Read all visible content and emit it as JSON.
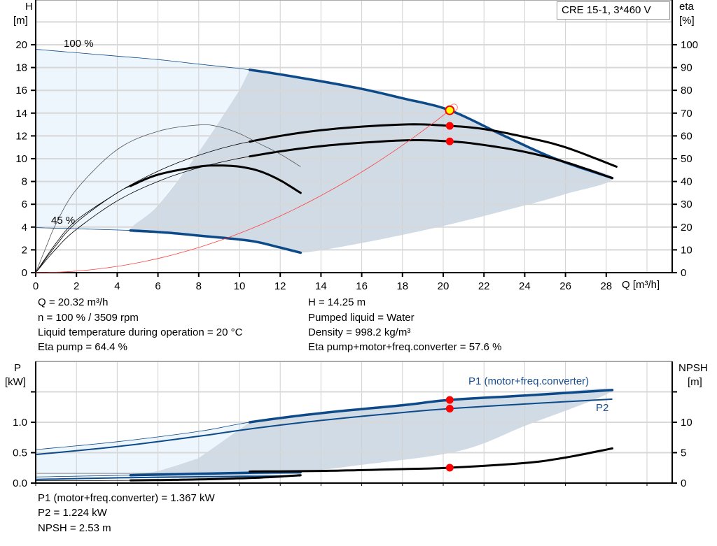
{
  "legend_title": "CRE 15-1, 3*460 V",
  "colors": {
    "band_light": "#edf5fd",
    "band_dark": "#d0dbe6",
    "curve_blue": "#0d4a8a",
    "curve_black": "#000000",
    "system_curve": "#ff4040",
    "dot": "#ff0000",
    "duty_point": "#ffff00"
  },
  "chart_data": [
    {
      "type": "line",
      "xlabel": "Q [m³/h]",
      "ylabel_left": [
        "H",
        "[m]"
      ],
      "ylabel_right": [
        "eta",
        "[%]"
      ],
      "xlim": [
        0,
        32.2
      ],
      "ylim_left": [
        0,
        23.9
      ],
      "ylim_right": [
        0,
        119.5
      ],
      "x_ticks": [
        "0",
        "2",
        "4",
        "6",
        "8",
        "10",
        "12",
        "14",
        "16",
        "18",
        "20",
        "22",
        "24",
        "26",
        "28"
      ],
      "y_ticks_left": [
        "0",
        "2",
        "4",
        "6",
        "8",
        "10",
        "12",
        "14",
        "16",
        "18",
        "20"
      ],
      "y_ticks_right": [
        "0",
        "10",
        "20",
        "30",
        "40",
        "50",
        "60",
        "70",
        "80",
        "90",
        "100"
      ],
      "grid": true,
      "annotations": [
        "100 %",
        "45 %"
      ],
      "series": [
        {
          "axis": "H",
          "style": "blue",
          "thick_from": 10.5,
          "points": [
            [
              0,
              19.6
            ],
            [
              2,
              19.3
            ],
            [
              4,
              19.0
            ],
            [
              6,
              18.7
            ],
            [
              8,
              18.3
            ],
            [
              10.5,
              17.8
            ],
            [
              13,
              17.1
            ],
            [
              15.8,
              16.2
            ],
            [
              18,
              15.3
            ],
            [
              20.32,
              14.25
            ],
            [
              23,
              12.0
            ],
            [
              25.5,
              10.0
            ],
            [
              28.3,
              8.3
            ]
          ]
        },
        {
          "axis": "H",
          "style": "blue",
          "thick_from": 4.65,
          "points": [
            [
              0,
              3.95
            ],
            [
              2,
              3.85
            ],
            [
              4.65,
              3.7
            ],
            [
              6.5,
              3.5
            ],
            [
              8,
              3.25
            ],
            [
              10.5,
              2.8
            ],
            [
              12,
              2.2
            ],
            [
              13,
              1.75
            ]
          ]
        },
        {
          "axis": "eta",
          "style": "black",
          "thick_from": 10.5,
          "points": [
            [
              0,
              0
            ],
            [
              1,
              12
            ],
            [
              2,
              22
            ],
            [
              4,
              35
            ],
            [
              6,
              44.5
            ],
            [
              8,
              51.5
            ],
            [
              10.5,
              57.5
            ],
            [
              14,
              62.5
            ],
            [
              18,
              65
            ],
            [
              20.32,
              64.4
            ],
            [
              22,
              63
            ],
            [
              24,
              59.5
            ],
            [
              26,
              55
            ],
            [
              28.5,
              46.5
            ]
          ]
        },
        {
          "axis": "eta",
          "style": "black",
          "thick_from": 10.5,
          "points": [
            [
              0,
              0
            ],
            [
              1,
              10.5
            ],
            [
              2,
              19
            ],
            [
              4,
              31.5
            ],
            [
              6,
              40
            ],
            [
              8,
              46
            ],
            [
              10.5,
              51
            ],
            [
              14,
              55.5
            ],
            [
              18,
              58
            ],
            [
              20.32,
              57.6
            ],
            [
              22,
              56
            ],
            [
              24,
              53
            ],
            [
              26,
              48.5
            ],
            [
              28.3,
              41.5
            ]
          ]
        },
        {
          "axis": "eta",
          "style": "black",
          "thick_from": 4.65,
          "points": [
            [
              0,
              0
            ],
            [
              1,
              13
            ],
            [
              2,
              23
            ],
            [
              4,
              35
            ],
            [
              4.65,
              38
            ],
            [
              6,
              43
            ],
            [
              8,
              46.5
            ],
            [
              9,
              47
            ],
            [
              10,
              46.5
            ],
            [
              11,
              44.5
            ],
            [
              12,
              40.5
            ],
            [
              13,
              35
            ]
          ]
        },
        {
          "axis": "eta",
          "style": "thin",
          "thick_from": 99,
          "points": [
            [
              0,
              0
            ],
            [
              0.5,
              11
            ],
            [
              1,
              21.5
            ],
            [
              2,
              36.5
            ],
            [
              4,
              54
            ],
            [
              6,
              62
            ],
            [
              8,
              64.8
            ],
            [
              9,
              64
            ],
            [
              10,
              61
            ],
            [
              11,
              56.5
            ],
            [
              12,
              52
            ],
            [
              13,
              46.5
            ]
          ]
        }
      ],
      "system_curve": {
        "k": 0.0345,
        "q_max": 20.7
      },
      "duty_point": {
        "Q": 20.32,
        "H": 14.25
      },
      "eta_points": [
        64.4,
        57.6
      ],
      "operating_range_dark": [
        [
          10.5,
          17.8
        ],
        [
          13,
          17.1
        ],
        [
          15.8,
          16.2
        ],
        [
          18,
          15.3
        ],
        [
          20.32,
          14.25
        ],
        [
          23,
          12.0
        ],
        [
          25.5,
          10.0
        ],
        [
          28.3,
          8.3
        ],
        [
          26,
          6.9
        ],
        [
          24,
          5.9
        ],
        [
          20,
          4.1
        ],
        [
          16,
          2.6
        ],
        [
          13,
          1.75
        ],
        [
          12,
          2.2
        ],
        [
          10.5,
          2.8
        ],
        [
          8,
          3.25
        ],
        [
          6.5,
          3.5
        ],
        [
          4.65,
          3.7
        ],
        [
          6,
          5.9
        ],
        [
          8,
          10.6
        ],
        [
          10,
          16
        ]
      ],
      "operating_range_light": [
        [
          0,
          19.6
        ],
        [
          2,
          19.3
        ],
        [
          4,
          19.0
        ],
        [
          6,
          18.7
        ],
        [
          8,
          18.3
        ],
        [
          10.5,
          17.8
        ],
        [
          10,
          16
        ],
        [
          8,
          10.6
        ],
        [
          6,
          5.9
        ],
        [
          4.65,
          3.7
        ],
        [
          2,
          3.85
        ],
        [
          0,
          3.95
        ]
      ]
    },
    {
      "type": "line",
      "ylabel_left": [
        "P",
        "[kW]"
      ],
      "ylabel_right": [
        "NPSH",
        "[m]"
      ],
      "xlim": [
        0,
        32.2
      ],
      "ylim_left": [
        0,
        2.0
      ],
      "ylim_right": [
        0,
        20
      ],
      "y_ticks_left": [
        "0.0",
        "0.5",
        "1.0"
      ],
      "y_ticks_right": [
        "0",
        "5",
        "10"
      ],
      "grid": true,
      "series": [
        {
          "name": "P1 (motor+freq.converter)",
          "axis": "P",
          "style": "blue",
          "thick_from": 10.5,
          "points": [
            [
              0,
              0.55
            ],
            [
              4,
              0.68
            ],
            [
              8,
              0.85
            ],
            [
              10.5,
              1.0
            ],
            [
              14,
              1.15
            ],
            [
              18,
              1.28
            ],
            [
              20.32,
              1.367
            ],
            [
              24,
              1.44
            ],
            [
              28.3,
              1.53
            ]
          ]
        },
        {
          "name": "P2",
          "axis": "P",
          "style": "bluemid",
          "thick_from": 99,
          "points": [
            [
              0,
              0.47
            ],
            [
              4,
              0.6
            ],
            [
              8,
              0.77
            ],
            [
              10.5,
              0.89
            ],
            [
              14,
              1.03
            ],
            [
              18,
              1.16
            ],
            [
              20.32,
              1.224
            ],
            [
              24,
              1.3
            ],
            [
              28.3,
              1.38
            ]
          ]
        },
        {
          "axis": "P",
          "style": "blue",
          "thick_from": 4.65,
          "points": [
            [
              0,
              0.1
            ],
            [
              4.65,
              0.13
            ],
            [
              10.5,
              0.17
            ],
            [
              13,
              0.18
            ]
          ]
        },
        {
          "axis": "P",
          "style": "bluemid",
          "thick_from": 99,
          "points": [
            [
              0,
              0.06
            ],
            [
              4.65,
              0.09
            ],
            [
              10,
              0.11
            ],
            [
              13,
              0.12
            ]
          ]
        },
        {
          "axis": "NPSH",
          "style": "black",
          "thick_from": 4.65,
          "points": [
            [
              0,
              0.4
            ],
            [
              4.65,
              0.45
            ],
            [
              8,
              0.6
            ],
            [
              11,
              0.9
            ],
            [
              13,
              1.3
            ]
          ]
        },
        {
          "axis": "NPSH",
          "style": "black",
          "thick_from": 10.5,
          "points": [
            [
              10.5,
              1.9
            ],
            [
              14,
              2.0
            ],
            [
              18,
              2.3
            ],
            [
              20.32,
              2.53
            ],
            [
              24,
              3.3
            ],
            [
              26,
              4.2
            ],
            [
              28.3,
              5.7
            ]
          ]
        }
      ],
      "points": [
        [
          "P",
          1.367
        ],
        [
          "P",
          1.224
        ],
        [
          "NPSH",
          2.53
        ]
      ],
      "operating_range_dark": [
        [
          10.5,
          1.0
        ],
        [
          14,
          1.15
        ],
        [
          18,
          1.28
        ],
        [
          20.32,
          1.367
        ],
        [
          24,
          1.44
        ],
        [
          28.3,
          1.53
        ],
        [
          24,
          0.94
        ],
        [
          20.8,
          0.53
        ],
        [
          16,
          0.3
        ],
        [
          12,
          0.15
        ],
        [
          8,
          0.1
        ],
        [
          4.65,
          0.13
        ],
        [
          6,
          0.2
        ],
        [
          8,
          0.41
        ]
      ],
      "operating_range_light": [
        [
          0,
          0.55
        ],
        [
          4,
          0.68
        ],
        [
          8,
          0.85
        ],
        [
          10.5,
          1.0
        ],
        [
          8,
          0.41
        ],
        [
          6,
          0.2
        ],
        [
          4.65,
          0.13
        ],
        [
          0,
          0.1
        ]
      ]
    }
  ],
  "readout_top": {
    "left": [
      "Q = 20.32 m³/h",
      "n = 100 % / 3509 rpm",
      "Liquid temperature during operation = 20 °C",
      "Eta pump = 64.4 %"
    ],
    "right": [
      "H = 14.25 m",
      "Pumped liquid = Water",
      "Density = 998.2 kg/m³",
      "Eta pump+motor+freq.converter = 57.6 %"
    ]
  },
  "readout_bottom": [
    "P1 (motor+freq.converter) = 1.367 kW",
    "P2 = 1.224 kW",
    "NPSH = 2.53 m"
  ]
}
